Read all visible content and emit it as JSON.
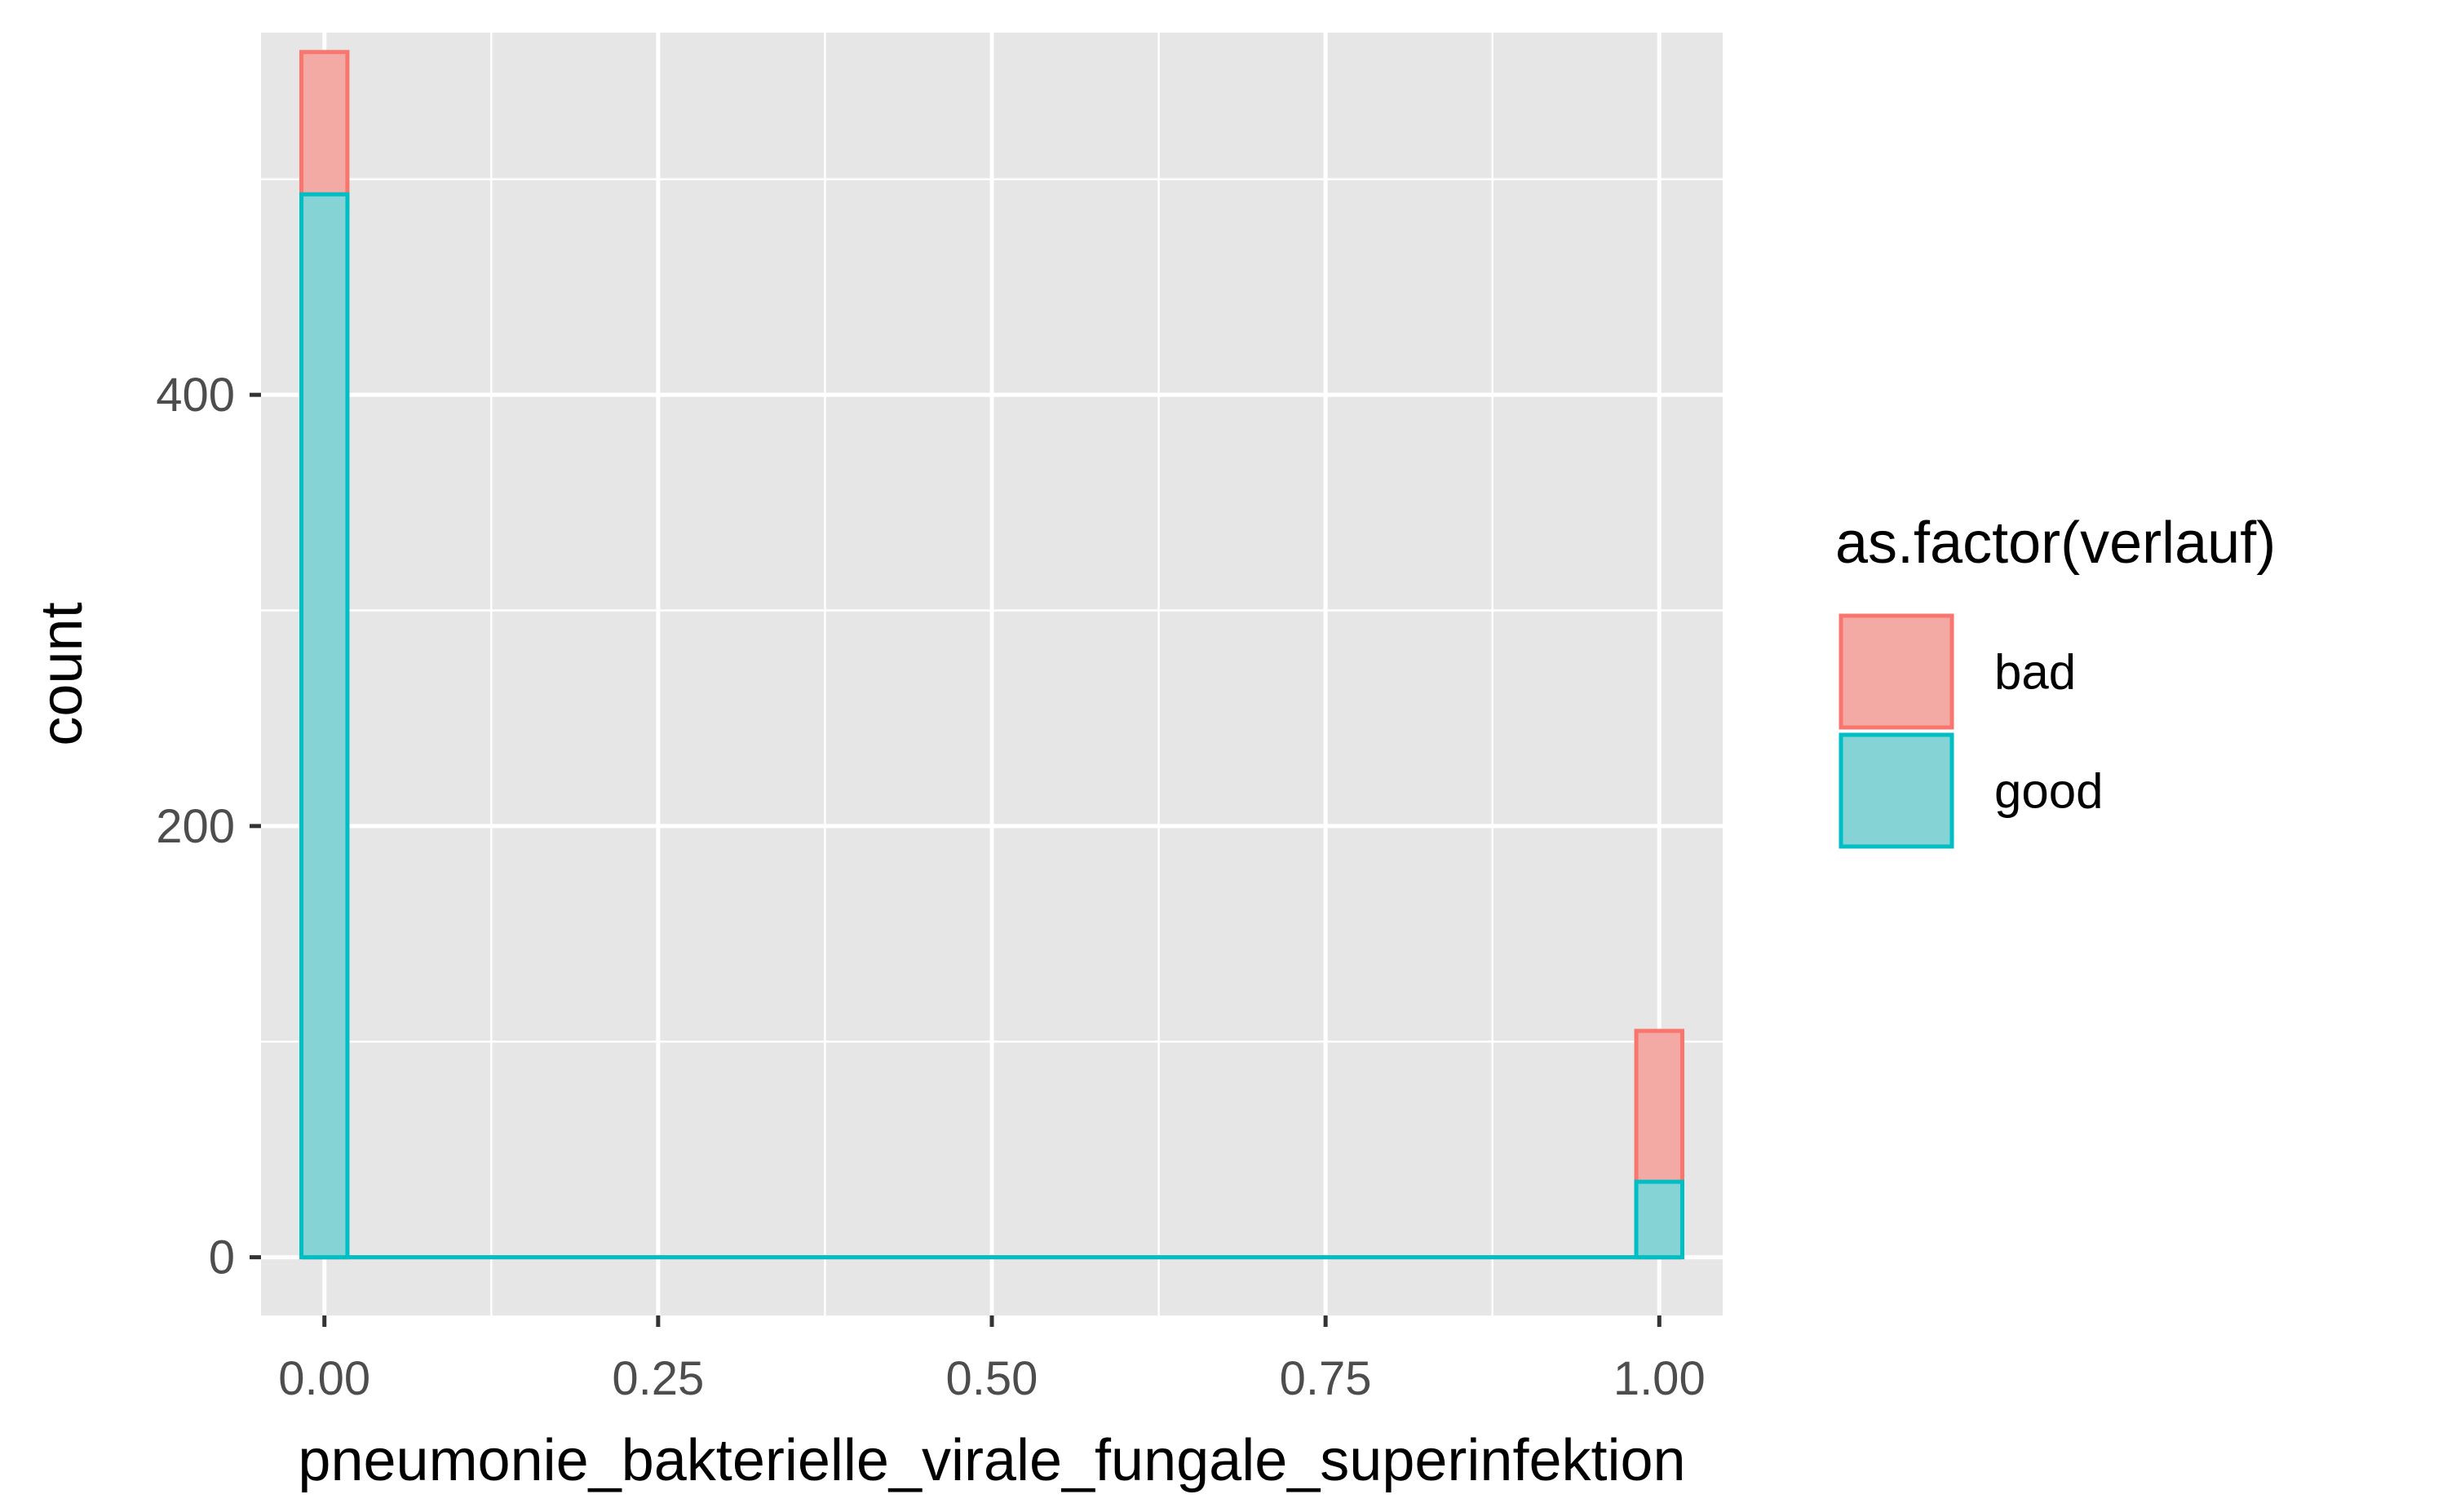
{
  "chart_data": {
    "type": "bar",
    "xlabel": "pneumonie_bakterielle_virale_fungale_superinfektion",
    "ylabel": "count",
    "x_ticks": [
      "0.00",
      "0.25",
      "0.50",
      "0.75",
      "1.00"
    ],
    "x_tick_values": [
      0,
      0.25,
      0.5,
      0.75,
      1.0
    ],
    "y_ticks": [
      "0",
      "200",
      "400"
    ],
    "y_tick_values": [
      0,
      200,
      400
    ],
    "xlim": [
      -0.0475,
      1.0475
    ],
    "ylim": [
      -27,
      568
    ],
    "bin_width": 0.03448,
    "x": [
      0,
      1
    ],
    "series": [
      {
        "name": "bad",
        "values": [
          559,
          105
        ],
        "color": "#f8766d",
        "fill": "#f3a9a4"
      },
      {
        "name": "good",
        "values": [
          493,
          35
        ],
        "color": "#00bfc4",
        "fill": "#85d3d5"
      }
    ],
    "legend": {
      "title": "as.factor(verlauf)",
      "position": "right"
    },
    "grid": true,
    "panel_background": "#e6e6e6"
  }
}
